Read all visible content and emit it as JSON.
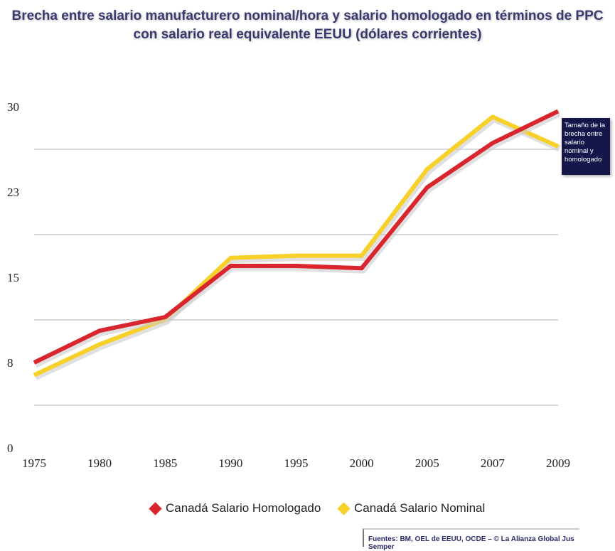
{
  "chart_data": {
    "type": "line",
    "title": "Brecha entre salario manufacturero nominal/hora y salario homologado en términos de PPC con salario real equivalente EEUU (dólares corrientes)",
    "categories": [
      "1975",
      "1980",
      "1985",
      "1990",
      "1995",
      "2000",
      "2005",
      "2007",
      "2009"
    ],
    "y_ticks": [
      "0",
      "8",
      "15",
      "23",
      "30"
    ],
    "ylim": [
      0,
      30
    ],
    "grid": true,
    "series": [
      {
        "name": "Canadá Salario Homologado",
        "color": "#d9262e",
        "values": [
          7.5,
          10.3,
          11.5,
          16.0,
          16.0,
          15.8,
          22.9,
          26.8,
          29.6
        ]
      },
      {
        "name": "Canadá Salario Nominal",
        "color": "#f7d12a",
        "values": [
          6.4,
          9.1,
          11.3,
          16.7,
          16.9,
          16.9,
          24.5,
          29.1,
          26.5
        ]
      }
    ],
    "annotation": "Tamaño de la brecha entre salario nominal y homologado",
    "legend_position": "bottom",
    "source": "Fuentes: BM, OEL de EEUU, OCDE – © La Alianza Global Jus Semper"
  }
}
